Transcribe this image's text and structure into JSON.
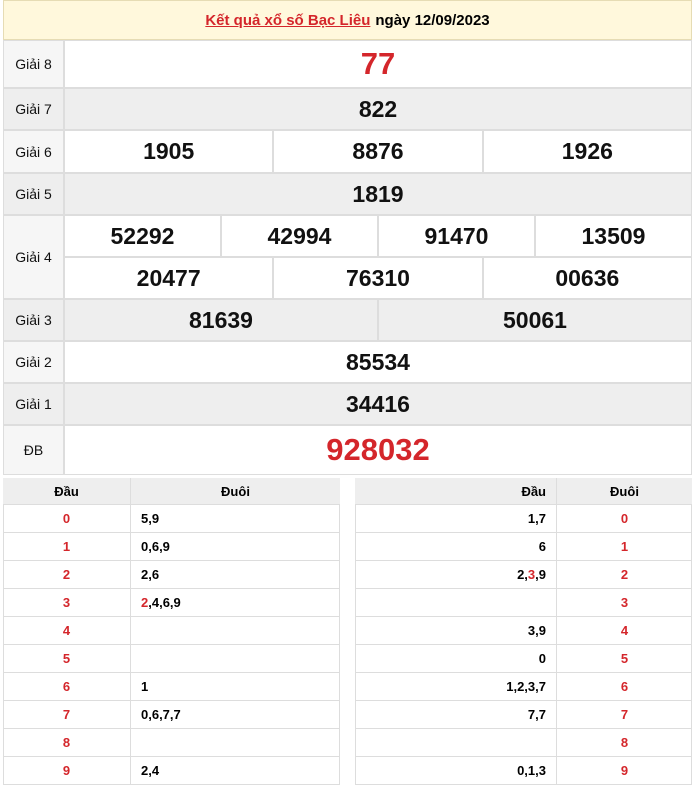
{
  "header": {
    "title": "Kết quả xổ số Bạc Liêu",
    "date": "ngày 12/09/2023"
  },
  "prizes": [
    {
      "label": "Giải 8",
      "rows": [
        [
          "77"
        ]
      ],
      "red": true
    },
    {
      "label": "Giải 7",
      "rows": [
        [
          "822"
        ]
      ]
    },
    {
      "label": "Giải 6",
      "rows": [
        [
          "1905",
          "8876",
          "1926"
        ]
      ]
    },
    {
      "label": "Giải 5",
      "rows": [
        [
          "1819"
        ]
      ]
    },
    {
      "label": "Giải 4",
      "rows": [
        [
          "52292",
          "42994",
          "91470",
          "13509"
        ],
        [
          "20477",
          "76310",
          "00636"
        ]
      ]
    },
    {
      "label": "Giải 3",
      "rows": [
        [
          "81639",
          "50061"
        ]
      ]
    },
    {
      "label": "Giải 2",
      "rows": [
        [
          "85534"
        ]
      ]
    },
    {
      "label": "Giải 1",
      "rows": [
        [
          "34416"
        ]
      ]
    },
    {
      "label": "ĐB",
      "rows": [
        [
          "928032"
        ]
      ],
      "red": true
    }
  ],
  "loto": [
    {
      "columns": [
        "Đầu",
        "Đuôi"
      ],
      "red_column": 0,
      "rows": [
        [
          "0",
          "5,9"
        ],
        [
          "1",
          "0,6,9"
        ],
        [
          "2",
          "2,6"
        ],
        [
          "3",
          [
            {
              "text": "2",
              "red": true
            },
            {
              "text": ",4,6,9"
            }
          ]
        ],
        [
          "4",
          null
        ],
        [
          "5",
          null
        ],
        [
          "6",
          "1"
        ],
        [
          "7",
          "0,6,7,7"
        ],
        [
          "8",
          null
        ],
        [
          "9",
          "2,4"
        ]
      ]
    },
    {
      "columns": [
        "Đầu",
        "Đuôi"
      ],
      "red_column": 1,
      "rows": [
        [
          "1,7",
          "0"
        ],
        [
          "6",
          "1"
        ],
        [
          [
            {
              "text": "2,"
            },
            {
              "text": "3",
              "red": true
            },
            {
              "text": ",9"
            }
          ],
          "2"
        ],
        [
          null,
          "3"
        ],
        [
          "3,9",
          "4"
        ],
        [
          "0",
          "5"
        ],
        [
          "1,2,3,7",
          "6"
        ],
        [
          "7,7",
          "7"
        ],
        [
          null,
          "8"
        ],
        [
          "0,1,3",
          "9"
        ]
      ]
    }
  ]
}
